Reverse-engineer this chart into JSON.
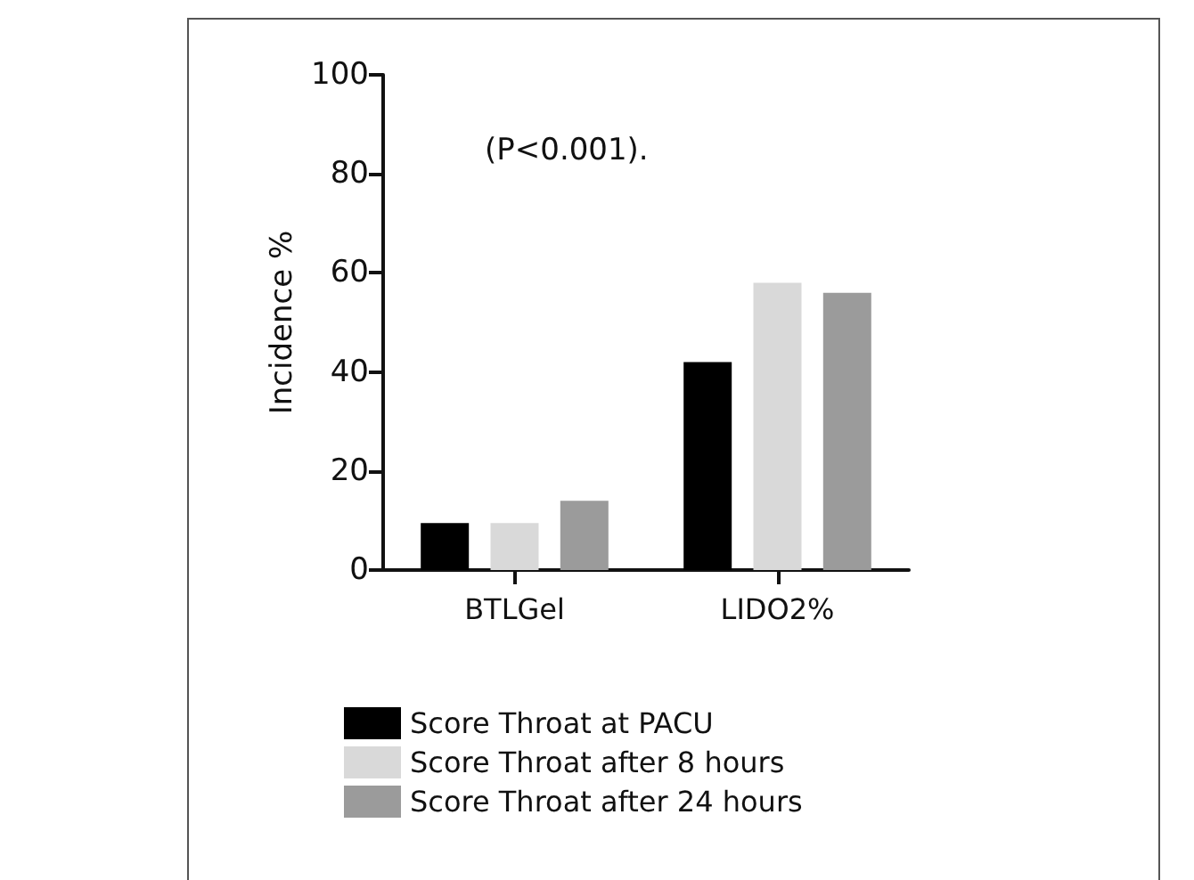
{
  "chart_data": {
    "type": "bar",
    "ylabel": "Incidence %",
    "categories": [
      "BTLGel",
      "LIDO2%"
    ],
    "series": [
      {
        "name": "Score Throat at PACU",
        "color": "#000000",
        "values": [
          9.5,
          42
        ]
      },
      {
        "name": "Score Throat after 8 hours",
        "color": "#d9d9d9",
        "values": [
          9.5,
          58
        ]
      },
      {
        "name": "Score Throat after 24 hours",
        "color": "#9b9b9b",
        "values": [
          14,
          56
        ]
      }
    ],
    "ylim": [
      0,
      100
    ],
    "yticks": [
      0,
      20,
      40,
      60,
      80,
      100
    ],
    "grid": false,
    "legend": "bottom",
    "annotations": [
      "(P<0.001)."
    ]
  }
}
